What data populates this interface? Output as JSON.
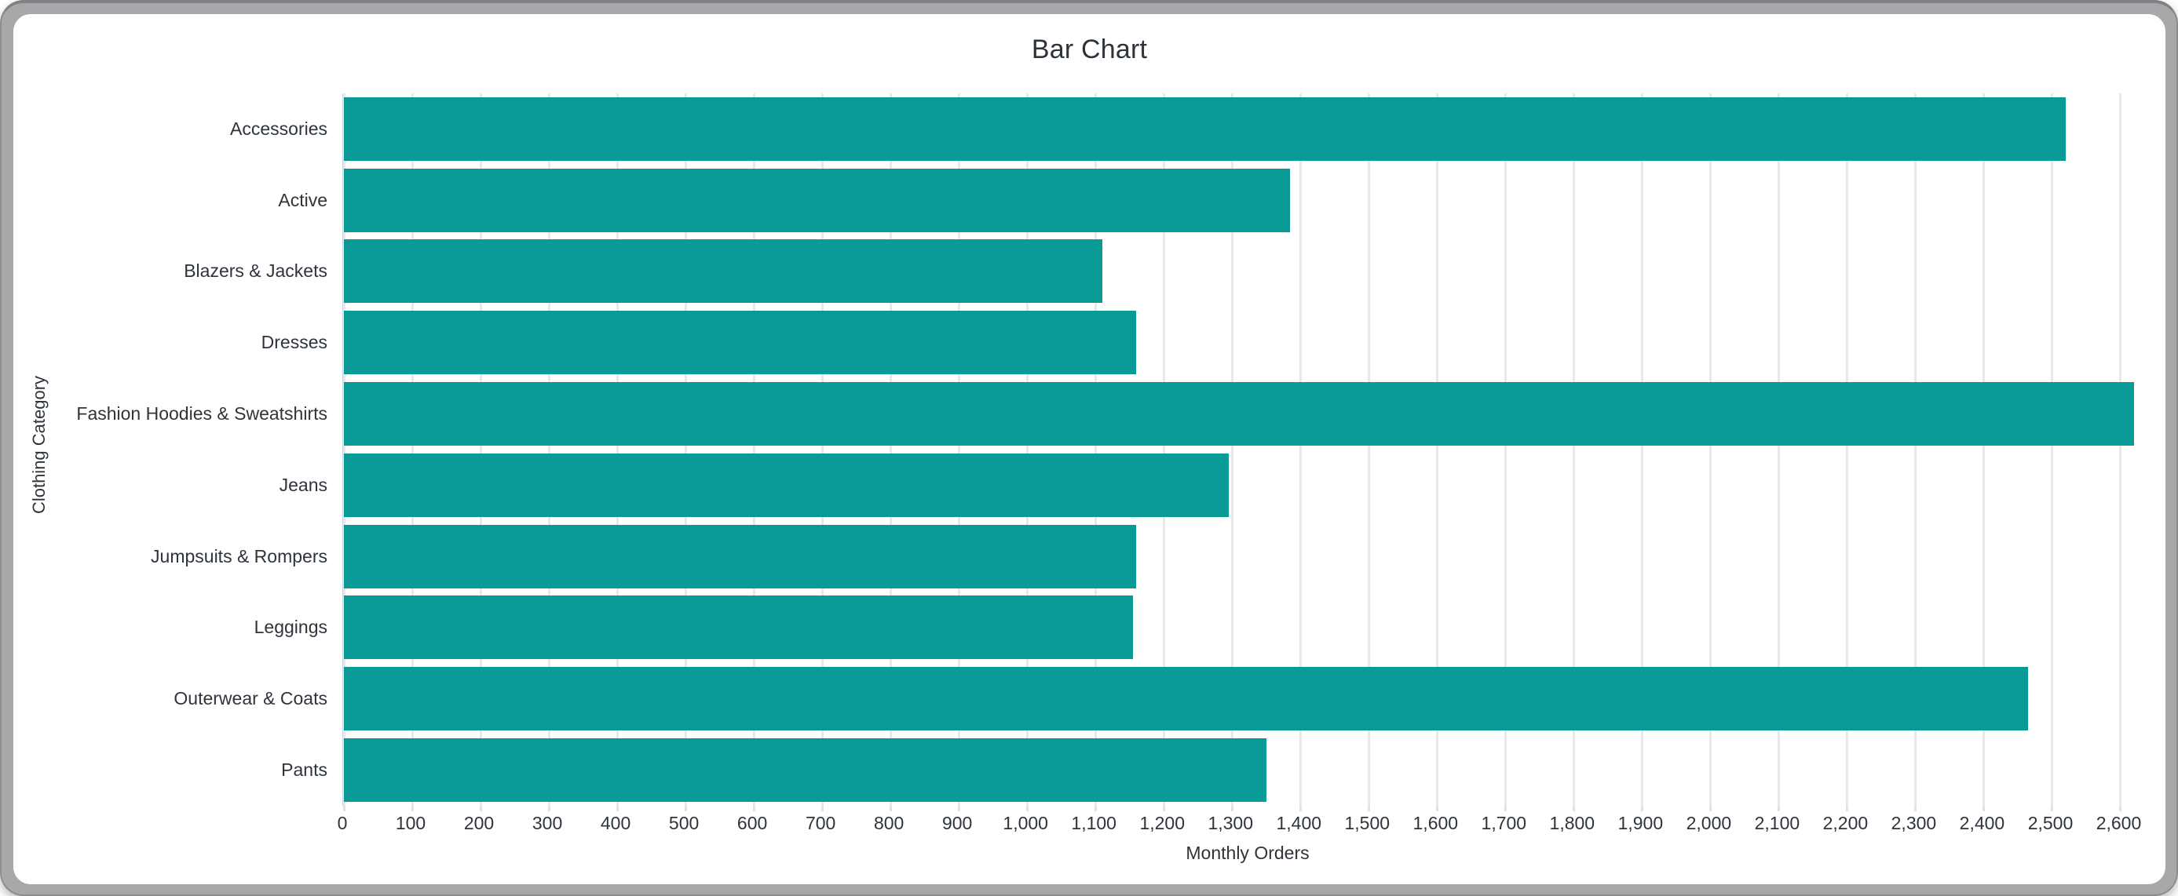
{
  "chart": {
    "title": "Bar Chart",
    "x_axis_title": "Monthly Orders",
    "y_axis_title": "Clothing Category",
    "bar_color": "#099a96",
    "gridline_color": "#e8e8ea",
    "text_color": "#2e343b"
  },
  "chart_data": {
    "type": "bar",
    "orientation": "horizontal",
    "title": "Bar Chart",
    "xlabel": "Monthly Orders",
    "ylabel": "Clothing Category",
    "categories": [
      "Accessories",
      "Active",
      "Blazers & Jackets",
      "Dresses",
      "Fashion Hoodies & Sweatshirts",
      "Jeans",
      "Jumpsuits & Rompers",
      "Leggings",
      "Outerwear & Coats",
      "Pants"
    ],
    "values": [
      2520,
      1385,
      1110,
      1160,
      2620,
      1295,
      1160,
      1155,
      2465,
      1350
    ],
    "xlim": [
      0,
      2650
    ],
    "grid": true,
    "legend": false,
    "x_tick_values": [
      0,
      100,
      200,
      300,
      400,
      500,
      600,
      700,
      800,
      900,
      1000,
      1100,
      1200,
      1300,
      1400,
      1500,
      1600,
      1700,
      1800,
      1900,
      2000,
      2100,
      2200,
      2300,
      2400,
      2500,
      2600
    ],
    "x_tick_labels": [
      "0",
      "100",
      "200",
      "300",
      "400",
      "500",
      "600",
      "700",
      "800",
      "900",
      "1,000",
      "1,100",
      "1,200",
      "1,300",
      "1,400",
      "1,500",
      "1,600",
      "1,700",
      "1,800",
      "1,900",
      "2,000",
      "2,100",
      "2,200",
      "2,300",
      "2,400",
      "2,500",
      "2,600"
    ]
  }
}
